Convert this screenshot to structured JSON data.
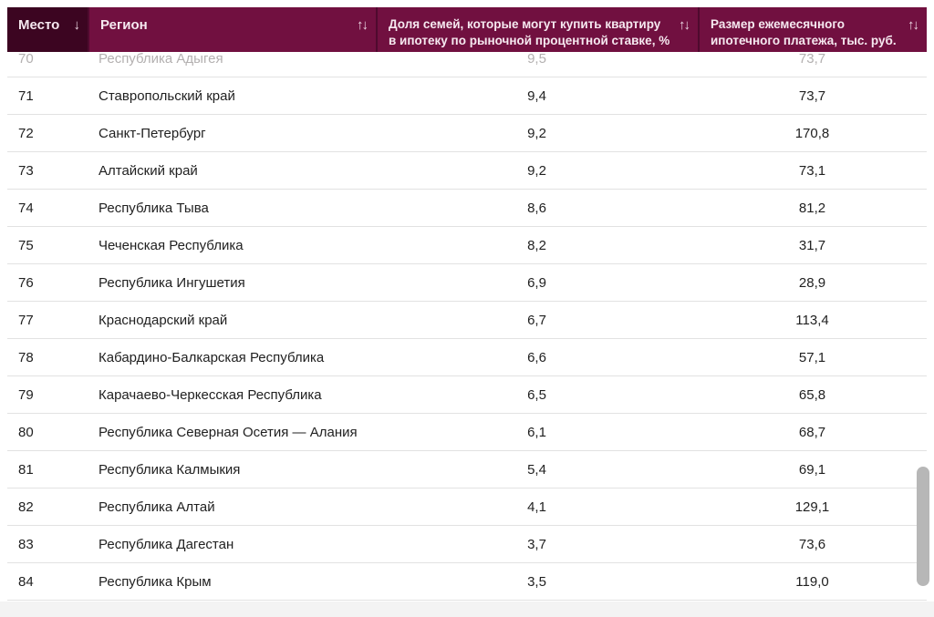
{
  "table": {
    "columns": [
      {
        "id": "rank",
        "lines": [
          "Место"
        ],
        "sort_icon": "↓"
      },
      {
        "id": "region",
        "lines": [
          "Регион"
        ],
        "sort_icon": "↑↓"
      },
      {
        "id": "share",
        "lines": [
          "Доля семей, которые могут купить квартиру",
          "в ипотеку по рыночной процентной ставке, %"
        ],
        "sort_icon": "↑↓"
      },
      {
        "id": "payment",
        "lines": [
          "Размер ежемесячного",
          "ипотечного платежа, тыс. руб."
        ],
        "sort_icon": "↑↓"
      }
    ],
    "rows": [
      {
        "rank": "70",
        "region": "Республика Адыгея",
        "share": "9,5",
        "payment": "73,7",
        "partial": true
      },
      {
        "rank": "71",
        "region": "Ставропольский край",
        "share": "9,4",
        "payment": "73,7"
      },
      {
        "rank": "72",
        "region": "Санкт-Петербург",
        "share": "9,2",
        "payment": "170,8"
      },
      {
        "rank": "73",
        "region": "Алтайский край",
        "share": "9,2",
        "payment": "73,1"
      },
      {
        "rank": "74",
        "region": "Республика Тыва",
        "share": "8,6",
        "payment": "81,2"
      },
      {
        "rank": "75",
        "region": "Чеченская Республика",
        "share": "8,2",
        "payment": "31,7"
      },
      {
        "rank": "76",
        "region": "Республика Ингушетия",
        "share": "6,9",
        "payment": "28,9"
      },
      {
        "rank": "77",
        "region": "Краснодарский край",
        "share": "6,7",
        "payment": "113,4"
      },
      {
        "rank": "78",
        "region": "Кабардино-Балкарская Республика",
        "share": "6,6",
        "payment": "57,1"
      },
      {
        "rank": "79",
        "region": "Карачаево-Черкесская Республика",
        "share": "6,5",
        "payment": "65,8"
      },
      {
        "rank": "80",
        "region": "Республика Северная Осетия — Алания",
        "share": "6,1",
        "payment": "68,7"
      },
      {
        "rank": "81",
        "region": "Республика Калмыкия",
        "share": "5,4",
        "payment": "69,1"
      },
      {
        "rank": "82",
        "region": "Республика Алтай",
        "share": "4,1",
        "payment": "129,1"
      },
      {
        "rank": "83",
        "region": "Республика Дагестан",
        "share": "3,7",
        "payment": "73,6"
      },
      {
        "rank": "84",
        "region": "Республика Крым",
        "share": "3,5",
        "payment": "119,0"
      }
    ],
    "colors": {
      "header_bg": "#711040",
      "header_sorted_bg": "#3c0521",
      "header_divider": "#4f0a2e",
      "row_divider": "#e2e2e2",
      "row_text": "#212121",
      "faded_row_text": "#b3b0b0",
      "scrollbar": "#b7b7b7"
    }
  }
}
